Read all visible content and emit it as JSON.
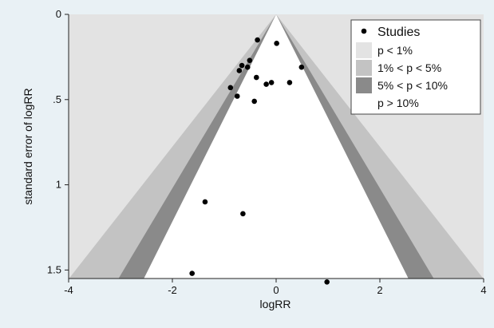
{
  "chart_data": {
    "type": "scatter",
    "subtype": "contour-enhanced funnel plot",
    "xlabel": "logRR",
    "ylabel": "standard error of logRR",
    "xlim": [
      -4,
      4
    ],
    "ylim": [
      1.55,
      0
    ],
    "y_reversed": true,
    "x_ticks": [
      -4,
      -2,
      0,
      2,
      4
    ],
    "x_tick_labels": [
      "-4",
      "-2",
      "0",
      "2",
      "4"
    ],
    "y_ticks": [
      0,
      0.5,
      1,
      1.5
    ],
    "y_tick_labels": [
      "0",
      ".5",
      "1",
      "1.5"
    ],
    "grid": false,
    "legend_position": "top-right",
    "legend": [
      {
        "label": "Studies",
        "kind": "marker",
        "color": "#000000"
      },
      {
        "label": "p < 1%",
        "kind": "swatch",
        "color": "#e3e3e3"
      },
      {
        "label": "1% < p < 5%",
        "kind": "swatch",
        "color": "#c3c3c3"
      },
      {
        "label": "5% < p < 10%",
        "kind": "swatch",
        "color": "#8a8a8a"
      },
      {
        "label": "p > 10%",
        "kind": "swatch",
        "color": "#ffffff"
      }
    ],
    "contours": [
      {
        "label": "p < 1%",
        "z": 2.576,
        "color": "#e3e3e3"
      },
      {
        "label": "1% < p < 5%",
        "z": 1.96,
        "color": "#c3c3c3"
      },
      {
        "label": "5% < p < 10%",
        "z": 1.645,
        "color": "#8a8a8a"
      }
    ],
    "series": [
      {
        "name": "Studies",
        "color": "#000000",
        "points": [
          {
            "x": -0.36,
            "y": 0.15
          },
          {
            "x": 0.01,
            "y": 0.17
          },
          {
            "x": 0.49,
            "y": 0.31
          },
          {
            "x": -0.66,
            "y": 0.3
          },
          {
            "x": -0.55,
            "y": 0.31
          },
          {
            "x": -0.51,
            "y": 0.27
          },
          {
            "x": -0.71,
            "y": 0.33
          },
          {
            "x": -0.88,
            "y": 0.43
          },
          {
            "x": -0.38,
            "y": 0.37
          },
          {
            "x": -0.19,
            "y": 0.41
          },
          {
            "x": -0.09,
            "y": 0.4
          },
          {
            "x": 0.26,
            "y": 0.4
          },
          {
            "x": -0.75,
            "y": 0.48
          },
          {
            "x": -0.42,
            "y": 0.51
          },
          {
            "x": -1.37,
            "y": 1.1
          },
          {
            "x": -0.64,
            "y": 1.17
          },
          {
            "x": -1.62,
            "y": 1.52
          },
          {
            "x": 0.98,
            "y": 1.57
          }
        ]
      }
    ]
  }
}
